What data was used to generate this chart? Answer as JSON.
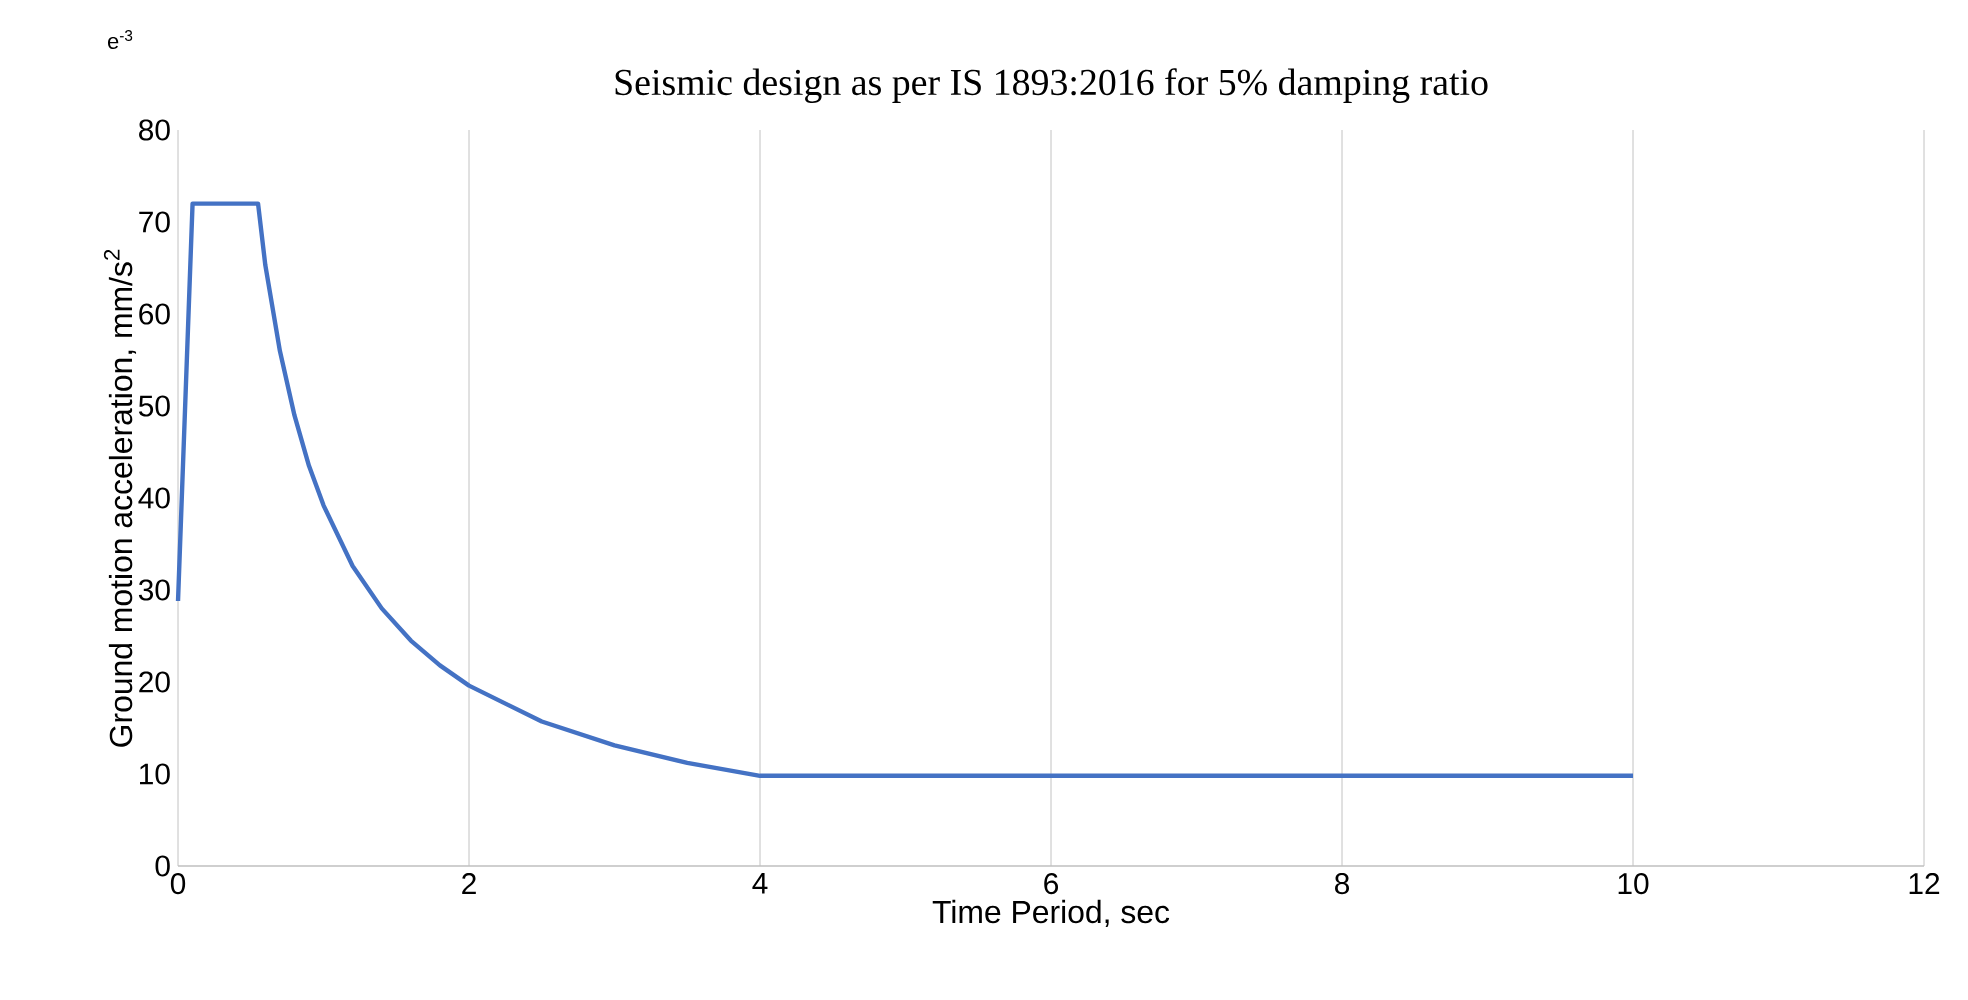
{
  "chart_data": {
    "type": "line",
    "title": "Seismic design as per IS 1893:2016 for 5% damping ratio",
    "xlabel": "Time Period, sec",
    "ylabel": "Ground motion acceleration, mm/s$^{2}$",
    "annotations": [
      "e$^{-3}$"
    ],
    "series": [
      {
        "color": "#4472c4",
        "x": [
          0,
          0.1,
          0.15,
          0.3,
          0.45,
          0.55,
          0.6,
          0.7,
          0.8,
          0.9,
          1,
          1.2,
          1.4,
          1.6,
          1.8,
          2,
          2.5,
          3,
          3.5,
          4,
          4.5,
          5,
          6,
          7,
          8,
          9,
          10
        ],
        "values": [
          28.8,
          72,
          72,
          72,
          72,
          72,
          65.3,
          56,
          49,
          43.5,
          39.2,
          32.6,
          28,
          24.5,
          21.8,
          19.6,
          15.7,
          13.1,
          11.2,
          9.8,
          9.8,
          9.8,
          9.8,
          9.8,
          9.8,
          9.8,
          9.8
        ]
      }
    ],
    "xlim": [
      0,
      12
    ],
    "ylim": [
      0,
      80
    ],
    "xticks": [
      0,
      2,
      4,
      6,
      8,
      10,
      12
    ],
    "yticks": [
      0,
      10,
      20,
      30,
      40,
      50,
      60,
      70,
      80
    ],
    "grid": "x",
    "marker": "none",
    "line_style": "solid"
  }
}
